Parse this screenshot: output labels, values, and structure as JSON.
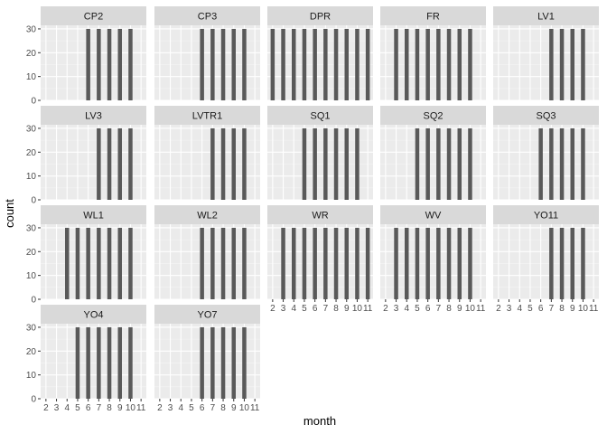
{
  "chart_data": {
    "type": "bar",
    "facet_wrap_ncol": 5,
    "xlabel": "month",
    "ylabel": "count",
    "x_ticks": [
      2,
      3,
      4,
      5,
      6,
      7,
      8,
      9,
      10,
      11
    ],
    "y_ticks": [
      0,
      10,
      20,
      30
    ],
    "xlim": [
      1.5,
      11.5
    ],
    "ylim": [
      0,
      31.5
    ],
    "grid": true,
    "bar_color": "#595959",
    "panel_bg": "#ebebeb",
    "strip_bg": "#d9d9d9",
    "panels": [
      {
        "name": "CP2",
        "months": [
          6,
          7,
          8,
          9,
          10
        ],
        "values": [
          30,
          30,
          30,
          30,
          30
        ]
      },
      {
        "name": "CP3",
        "months": [
          6,
          7,
          8,
          9,
          10
        ],
        "values": [
          30,
          30,
          30,
          30,
          30
        ]
      },
      {
        "name": "DPR",
        "months": [
          2,
          3,
          4,
          5,
          6,
          7,
          8,
          9,
          10,
          11
        ],
        "values": [
          30,
          30,
          30,
          30,
          30,
          30,
          30,
          30,
          30,
          30
        ]
      },
      {
        "name": "FR",
        "months": [
          3,
          4,
          5,
          6,
          7,
          8,
          9,
          10
        ],
        "values": [
          30,
          30,
          30,
          30,
          30,
          30,
          30,
          30
        ]
      },
      {
        "name": "LV1",
        "months": [
          7,
          8,
          9,
          10
        ],
        "values": [
          30,
          30,
          30,
          30
        ]
      },
      {
        "name": "LV3",
        "months": [
          7,
          8,
          9,
          10
        ],
        "values": [
          30,
          30,
          30,
          30
        ]
      },
      {
        "name": "LVTR1",
        "months": [
          7,
          8,
          9,
          10
        ],
        "values": [
          30,
          30,
          30,
          30
        ]
      },
      {
        "name": "SQ1",
        "months": [
          5,
          6,
          7,
          8,
          9,
          10
        ],
        "values": [
          30,
          30,
          30,
          30,
          30,
          30
        ]
      },
      {
        "name": "SQ2",
        "months": [
          5,
          6,
          7,
          8,
          9,
          10
        ],
        "values": [
          30,
          30,
          30,
          30,
          30,
          30
        ]
      },
      {
        "name": "SQ3",
        "months": [
          6,
          7,
          8,
          9,
          10
        ],
        "values": [
          30,
          30,
          30,
          30,
          30
        ]
      },
      {
        "name": "WL1",
        "months": [
          4,
          5,
          6,
          7,
          8,
          9,
          10
        ],
        "values": [
          30,
          30,
          30,
          30,
          30,
          30,
          30
        ]
      },
      {
        "name": "WL2",
        "months": [
          6,
          7,
          8,
          9,
          10
        ],
        "values": [
          30,
          30,
          30,
          30,
          30
        ]
      },
      {
        "name": "WR",
        "months": [
          3,
          4,
          5,
          6,
          7,
          8,
          9,
          10,
          11
        ],
        "values": [
          30,
          30,
          30,
          30,
          30,
          30,
          30,
          30,
          30
        ]
      },
      {
        "name": "WV",
        "months": [
          3,
          4,
          5,
          6,
          7,
          8,
          9,
          10
        ],
        "values": [
          30,
          30,
          30,
          30,
          30,
          30,
          30,
          30
        ]
      },
      {
        "name": "YO11",
        "months": [
          7,
          8,
          9,
          10
        ],
        "values": [
          30,
          30,
          30,
          30
        ]
      },
      {
        "name": "YO4",
        "months": [
          5,
          6,
          7,
          8,
          9,
          10
        ],
        "values": [
          30,
          30,
          30,
          30,
          30,
          30
        ]
      },
      {
        "name": "YO7",
        "months": [
          6,
          7,
          8,
          9,
          10
        ],
        "values": [
          30,
          30,
          30,
          30,
          30
        ]
      }
    ]
  }
}
